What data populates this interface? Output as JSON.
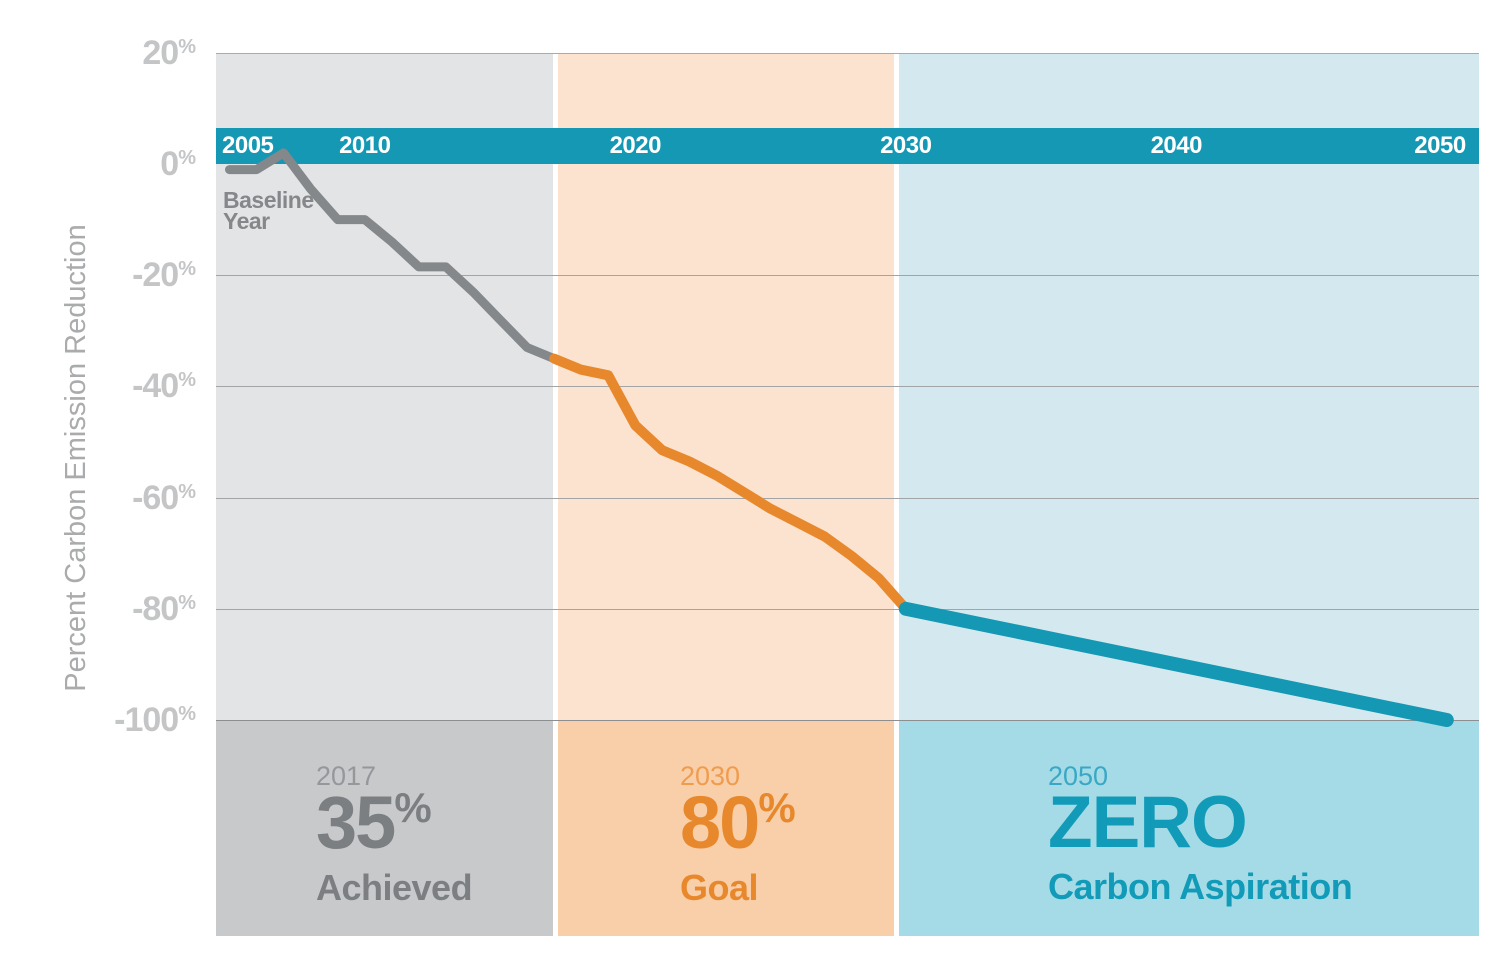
{
  "y_axis": {
    "title": "Percent Carbon Emission Reduction",
    "tick_labels": [
      "20%",
      "0%",
      "-20%",
      "-40%",
      "-60%",
      "-80%",
      "-100%"
    ],
    "tick_values": [
      20,
      0,
      -20,
      -40,
      -60,
      -80,
      -100
    ]
  },
  "timeline_bar": {
    "color": "#1598b4",
    "text_color": "#ffffff",
    "years": [
      {
        "label": "2005",
        "year": 2005,
        "align": "left"
      },
      {
        "label": "2010",
        "year": 2010,
        "align": "center"
      },
      {
        "label": "2020",
        "year": 2020,
        "align": "center"
      },
      {
        "label": "2030",
        "year": 2030,
        "align": "center"
      },
      {
        "label": "2040",
        "year": 2040,
        "align": "center"
      },
      {
        "label": "2050",
        "year": 2050,
        "align": "center2050"
      }
    ]
  },
  "baseline_annotation": {
    "line1": "Baseline",
    "line2": "Year"
  },
  "zones": [
    {
      "id": "achieved",
      "year_label": "2017",
      "big_value": "35",
      "big_suffix": "%",
      "caption": "Achieved",
      "upper_bg": "#e3e4e5",
      "panel_bg": "#c7c9cb",
      "year_color": "#95989b",
      "text_color": "#7c7f82"
    },
    {
      "id": "goal",
      "year_label": "2030",
      "big_value": "80",
      "big_suffix": "%",
      "caption": "Goal",
      "upper_bg": "#fbe3d0",
      "panel_bg": "#f8cfa9",
      "year_color": "#ef9c4f",
      "text_color": "#e8882c"
    },
    {
      "id": "aspiration",
      "year_label": "2050",
      "big_value": "ZERO",
      "big_suffix": "",
      "caption": "Carbon Aspiration",
      "upper_bg": "#d3e9ef",
      "panel_bg": "#a4dbe6",
      "year_color": "#3aa8c4",
      "text_color": "#129bb8"
    }
  ],
  "colors": {
    "gridline": "#a2a4a6",
    "top_border": "#a8aaac",
    "bottom_line": "#8c8e90",
    "axis_label": "#c3c5c7",
    "y_title": "#a9abac",
    "baseline_text": "#85878a"
  },
  "chart_data": {
    "type": "line",
    "title": "",
    "xlabel": "",
    "ylabel": "Percent Carbon Emission Reduction",
    "xlim": [
      2004.5,
      2051.2
    ],
    "ylim": [
      -100,
      20
    ],
    "x_ticks": [
      2005,
      2010,
      2020,
      2030,
      2040,
      2050
    ],
    "y_ticks": [
      20,
      0,
      -20,
      -40,
      -60,
      -80,
      -100
    ],
    "grid": true,
    "legend": false,
    "series": [
      {
        "name": "Achieved",
        "color": "#85888b",
        "stroke_width": 9,
        "x": [
          2005,
          2006,
          2007,
          2008,
          2009,
          2010,
          2011,
          2012,
          2013,
          2014,
          2015,
          2016,
          2017
        ],
        "y": [
          -1,
          -1,
          2,
          -4.5,
          -10,
          -10,
          -14,
          -18.5,
          -18.5,
          -23,
          -28,
          -33,
          -35
        ]
      },
      {
        "name": "Goal",
        "color": "#e8882c",
        "stroke_width": 10,
        "x": [
          2017,
          2018,
          2019,
          2020,
          2021,
          2022,
          2023,
          2024,
          2025,
          2026,
          2027,
          2028,
          2029,
          2030
        ],
        "y": [
          -35,
          -37,
          -38,
          -47,
          -51.5,
          -53.5,
          -56,
          -59,
          -62,
          -64.5,
          -67,
          -70.5,
          -74.5,
          -80
        ]
      },
      {
        "name": "Carbon Aspiration",
        "color": "#1598b4",
        "stroke_width": 14,
        "x": [
          2030,
          2050
        ],
        "y": [
          -80,
          -100
        ]
      }
    ],
    "zone_bands": [
      {
        "label": "2017 35% Achieved",
        "x_range": [
          2004.5,
          2017
        ]
      },
      {
        "label": "2030 80% Goal",
        "x_range": [
          2017,
          2029.7
        ]
      },
      {
        "label": "2050 ZERO Carbon Aspiration",
        "x_range": [
          2029.7,
          2051.2
        ]
      }
    ],
    "annotations": [
      {
        "text": "Baseline Year",
        "x": 2005,
        "y": 0
      }
    ]
  }
}
